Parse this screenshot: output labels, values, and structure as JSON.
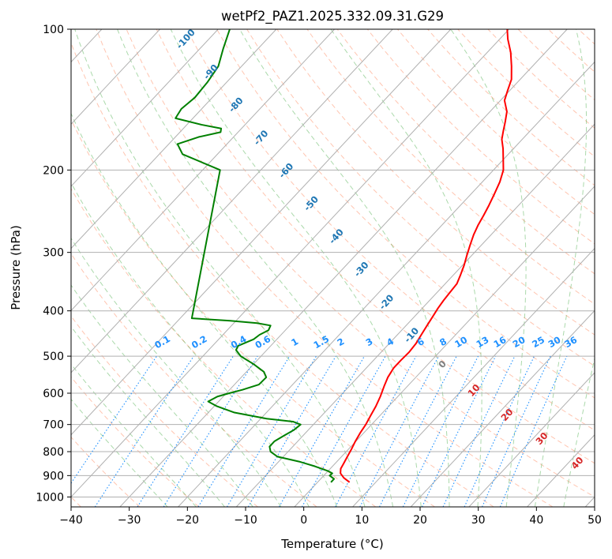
{
  "chart_data": {
    "type": "line",
    "subtype": "skew-t log-p diagram",
    "title": "wetPf2_PAZ1.2025.332.09.31.G29",
    "xlabel": "Temperature (°C)",
    "ylabel": "Pressure (hPa)",
    "xlim": [
      -40,
      50
    ],
    "ylim_hpa": [
      1050,
      100
    ],
    "x_ticks": [
      -40,
      -30,
      -20,
      -10,
      0,
      10,
      20,
      30,
      40,
      50
    ],
    "x_tick_labels": [
      "−40",
      "−30",
      "−20",
      "−10",
      "0",
      "10",
      "20",
      "30",
      "40",
      "50"
    ],
    "y_ticks": [
      1000,
      900,
      800,
      700,
      600,
      500,
      400,
      300,
      200,
      100
    ],
    "y_tick_labels": [
      "1000",
      "900",
      "800",
      "700",
      "600",
      "500",
      "400",
      "300",
      "200",
      "100"
    ],
    "grid": true,
    "colors": {
      "temperature": "#ff0000",
      "dewpoint": "#008000",
      "isotherm": "#808080",
      "dry_adiabat": "#ff7f50",
      "moist_adiabat": "#2ca02c",
      "mixing_ratio": "#1e90ff",
      "dry_label": "#1f77b4",
      "moist_label": "#d62728",
      "moist_zero_label": "#808080"
    },
    "series": [
      {
        "name": "Temperature",
        "p": [
          930,
          910,
          890,
          870,
          850,
          820,
          790,
          760,
          730,
          700,
          670,
          640,
          610,
          580,
          555,
          530,
          510,
          490,
          470,
          450,
          430,
          410,
          395,
          380,
          365,
          350,
          335,
          320,
          305,
          290,
          275,
          262,
          250,
          238,
          225,
          212,
          200,
          190,
          180,
          172,
          165,
          158,
          150,
          142,
          135,
          128,
          120,
          112,
          105,
          100
        ],
        "t": [
          5.5,
          3.8,
          2.5,
          1.8,
          1.5,
          1.0,
          0.5,
          -0.1,
          -0.6,
          -1.0,
          -1.6,
          -2.2,
          -3.0,
          -4.0,
          -4.8,
          -5.3,
          -5.3,
          -5.2,
          -5.4,
          -5.9,
          -6.4,
          -6.9,
          -7.3,
          -7.6,
          -7.8,
          -8.0,
          -8.8,
          -9.7,
          -10.8,
          -11.9,
          -13.0,
          -13.8,
          -14.4,
          -15.1,
          -16.0,
          -17.0,
          -18.3,
          -20.0,
          -21.8,
          -23.5,
          -24.6,
          -25.7,
          -27.1,
          -29.3,
          -30.4,
          -31.5,
          -33.6,
          -36.0,
          -38.6,
          -40.3
        ]
      },
      {
        "name": "Dewpoint",
        "p": [
          930,
          915,
          900,
          890,
          880,
          860,
          840,
          820,
          800,
          780,
          760,
          740,
          720,
          700,
          690,
          680,
          660,
          640,
          625,
          610,
          600,
          590,
          575,
          555,
          540,
          520,
          500,
          485,
          475,
          460,
          450,
          440,
          430,
          425,
          420,
          415,
          200,
          185,
          176,
          170,
          166,
          163,
          160,
          155,
          148,
          140,
          130,
          120,
          110,
          100
        ],
        "t": [
          2.3,
          2.3,
          1.0,
          1.1,
          0.0,
          -3.0,
          -6.5,
          -11.0,
          -13.0,
          -14.0,
          -14.0,
          -13.3,
          -12.5,
          -12.2,
          -14.0,
          -19.0,
          -25.5,
          -29.5,
          -31.8,
          -31.0,
          -29.5,
          -27.8,
          -25.8,
          -25.7,
          -27.0,
          -30.0,
          -33.5,
          -35.3,
          -35.6,
          -34.0,
          -33.7,
          -32.9,
          -33.3,
          -36.0,
          -41.0,
          -48.0,
          -67.0,
          -76.0,
          -78.5,
          -76.0,
          -73.0,
          -73.5,
          -77.5,
          -83.0,
          -83.5,
          -83.0,
          -83.3,
          -84.0,
          -86.0,
          -88.0
        ]
      }
    ],
    "dry_adiabat_labels": [
      "-100",
      "-90",
      "-80",
      "-70",
      "-60",
      "-50",
      "-40",
      "-30",
      "-20",
      "-10"
    ],
    "mixing_ratio_labels_gkg": [
      "0.1",
      "0.2",
      "0.4",
      "0.6",
      "1",
      "1.5",
      "2",
      "3",
      "4",
      "6",
      "8",
      "10",
      "13",
      "16",
      "20",
      "25",
      "30",
      "36"
    ],
    "moist_adiabat_labels": [
      "0",
      "10",
      "20",
      "30",
      "40"
    ]
  }
}
